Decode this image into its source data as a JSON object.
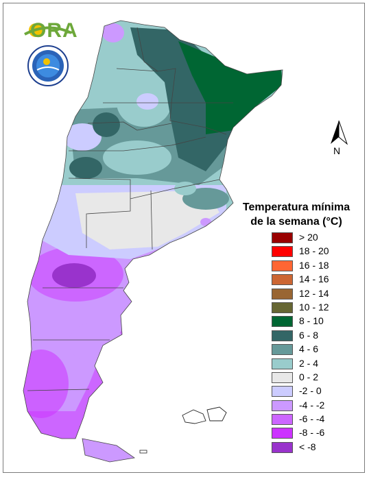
{
  "logos": {
    "ora_text": "ORA",
    "ora_icon": "ora-sun-logo",
    "smn_icon": "smn-emblem-logo"
  },
  "north_arrow": {
    "label": "N",
    "icon": "north-arrow-icon"
  },
  "legend": {
    "title_line1": "Temperatura mínima",
    "title_line2": "de la semana (°C)",
    "items": [
      {
        "label": "> 20",
        "color": "#990000"
      },
      {
        "label": "18 - 20",
        "color": "#ff0000"
      },
      {
        "label": "16 - 18",
        "color": "#ff6633"
      },
      {
        "label": "14 - 16",
        "color": "#cc6633"
      },
      {
        "label": "12 - 14",
        "color": "#996633"
      },
      {
        "label": "10 - 12",
        "color": "#666633"
      },
      {
        "label": "8 - 10",
        "color": "#006633"
      },
      {
        "label": "6 - 8",
        "color": "#336666"
      },
      {
        "label": "4 - 6",
        "color": "#669999"
      },
      {
        "label": "2 - 4",
        "color": "#99cccc"
      },
      {
        "label": "0 - 2",
        "color": "#e8e8e8"
      },
      {
        "label": "-2 - 0",
        "color": "#ccccff"
      },
      {
        "label": "-4 - -2",
        "color": "#cc99ff"
      },
      {
        "label": "-6 - -4",
        "color": "#cc66ff"
      },
      {
        "label": "-8 - -6",
        "color": "#cc33ff"
      },
      {
        "label": "< -8",
        "color": "#9933cc"
      }
    ]
  },
  "map": {
    "region": "Argentina",
    "zones": [
      {
        "name": "northeast",
        "class": "8 - 10",
        "color": "#006633"
      },
      {
        "name": "north-central",
        "class": "6 - 8",
        "color": "#336666"
      },
      {
        "name": "north",
        "class": "4 - 6",
        "color": "#669999"
      },
      {
        "name": "center-north",
        "class": "2 - 4",
        "color": "#99cccc"
      },
      {
        "name": "center",
        "class": "0 - 2",
        "color": "#e8e8e8"
      },
      {
        "name": "center-south",
        "class": "-2 - 0",
        "color": "#ccccff"
      },
      {
        "name": "patagonia-north",
        "class": "-4 - -2",
        "color": "#cc99ff"
      },
      {
        "name": "patagonia-south",
        "class": "-6 - -4",
        "color": "#cc66ff"
      },
      {
        "name": "patagonia-core",
        "class": "< -8",
        "color": "#9933cc"
      }
    ]
  }
}
